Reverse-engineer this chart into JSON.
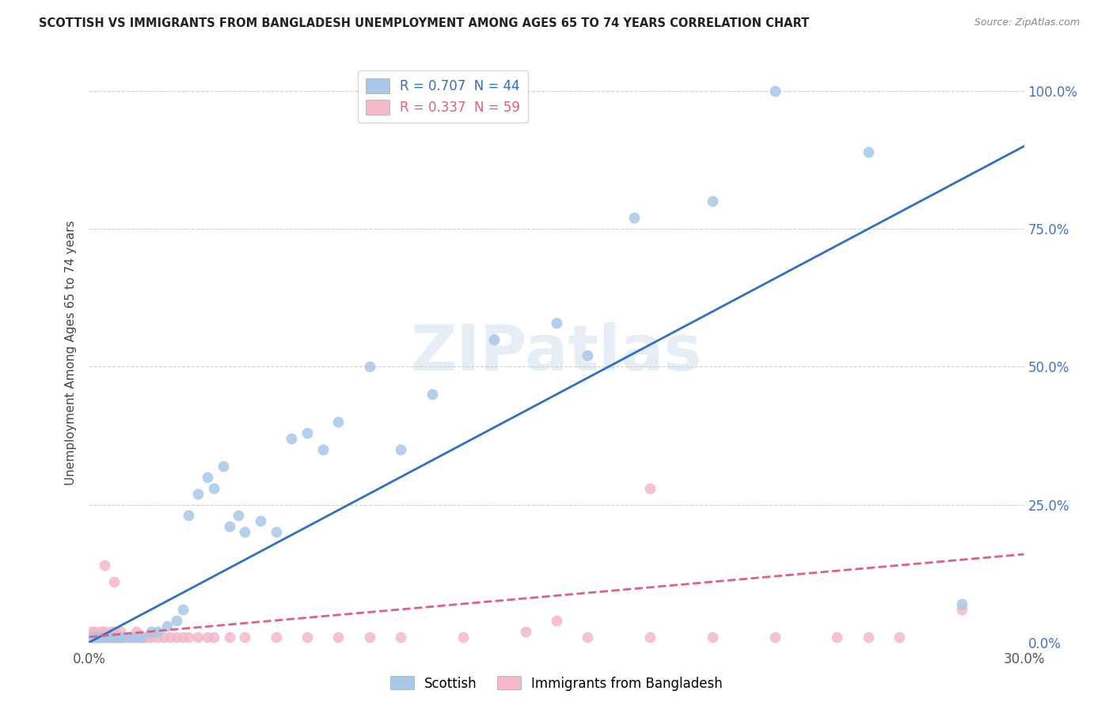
{
  "title": "SCOTTISH VS IMMIGRANTS FROM BANGLADESH UNEMPLOYMENT AMONG AGES 65 TO 74 YEARS CORRELATION CHART",
  "source": "Source: ZipAtlas.com",
  "ylabel": "Unemployment Among Ages 65 to 74 years",
  "scottish_R": 0.707,
  "scottish_N": 44,
  "bangladesh_R": 0.337,
  "bangladesh_N": 59,
  "scottish_color": "#a8c8e8",
  "bangladesh_color": "#f4b8c8",
  "scottish_line_color": "#3070c0",
  "bangladesh_line_color": "#e06080",
  "scottish_x": [
    0.001,
    0.002,
    0.003,
    0.004,
    0.005,
    0.006,
    0.007,
    0.008,
    0.009,
    0.01,
    0.011,
    0.013,
    0.015,
    0.017,
    0.02,
    0.022,
    0.025,
    0.028,
    0.03,
    0.032,
    0.035,
    0.038,
    0.04,
    0.043,
    0.045,
    0.048,
    0.05,
    0.055,
    0.06,
    0.065,
    0.07,
    0.075,
    0.08,
    0.09,
    0.1,
    0.11,
    0.13,
    0.15,
    0.16,
    0.175,
    0.2,
    0.22,
    0.25,
    0.28
  ],
  "scottish_y": [
    0.01,
    0.01,
    0.01,
    0.01,
    0.01,
    0.01,
    0.01,
    0.01,
    0.01,
    0.01,
    0.01,
    0.01,
    0.01,
    0.01,
    0.02,
    0.02,
    0.03,
    0.04,
    0.06,
    0.23,
    0.27,
    0.3,
    0.28,
    0.32,
    0.21,
    0.23,
    0.2,
    0.22,
    0.2,
    0.37,
    0.38,
    0.35,
    0.4,
    0.5,
    0.35,
    0.45,
    0.55,
    0.58,
    0.52,
    0.77,
    0.8,
    1.0,
    0.89,
    0.07
  ],
  "bangladesh_x": [
    0.001,
    0.001,
    0.002,
    0.002,
    0.003,
    0.003,
    0.004,
    0.004,
    0.005,
    0.005,
    0.006,
    0.006,
    0.007,
    0.007,
    0.008,
    0.008,
    0.009,
    0.01,
    0.01,
    0.011,
    0.012,
    0.013,
    0.014,
    0.015,
    0.016,
    0.017,
    0.018,
    0.019,
    0.02,
    0.022,
    0.024,
    0.026,
    0.028,
    0.03,
    0.032,
    0.035,
    0.038,
    0.04,
    0.045,
    0.05,
    0.06,
    0.07,
    0.08,
    0.09,
    0.1,
    0.12,
    0.14,
    0.16,
    0.18,
    0.2,
    0.22,
    0.24,
    0.25,
    0.26,
    0.28,
    0.005,
    0.008,
    0.15,
    0.18
  ],
  "bangladesh_y": [
    0.01,
    0.02,
    0.01,
    0.02,
    0.01,
    0.01,
    0.02,
    0.01,
    0.01,
    0.02,
    0.01,
    0.01,
    0.02,
    0.01,
    0.01,
    0.02,
    0.01,
    0.01,
    0.02,
    0.01,
    0.01,
    0.01,
    0.01,
    0.02,
    0.01,
    0.01,
    0.01,
    0.01,
    0.01,
    0.01,
    0.01,
    0.01,
    0.01,
    0.01,
    0.01,
    0.01,
    0.01,
    0.01,
    0.01,
    0.01,
    0.01,
    0.01,
    0.01,
    0.01,
    0.01,
    0.01,
    0.02,
    0.01,
    0.01,
    0.01,
    0.01,
    0.01,
    0.01,
    0.01,
    0.06,
    0.14,
    0.11,
    0.04,
    0.28
  ],
  "xlim": [
    0.0,
    0.3
  ],
  "ylim": [
    0.0,
    1.05
  ],
  "background_color": "#ffffff",
  "grid_color": "#d0d0d0",
  "scottish_line_x": [
    0.0,
    0.3
  ],
  "scottish_line_y": [
    0.0,
    0.9
  ],
  "bangladesh_line_x": [
    0.0,
    0.3
  ],
  "bangladesh_line_y": [
    0.01,
    0.16
  ]
}
